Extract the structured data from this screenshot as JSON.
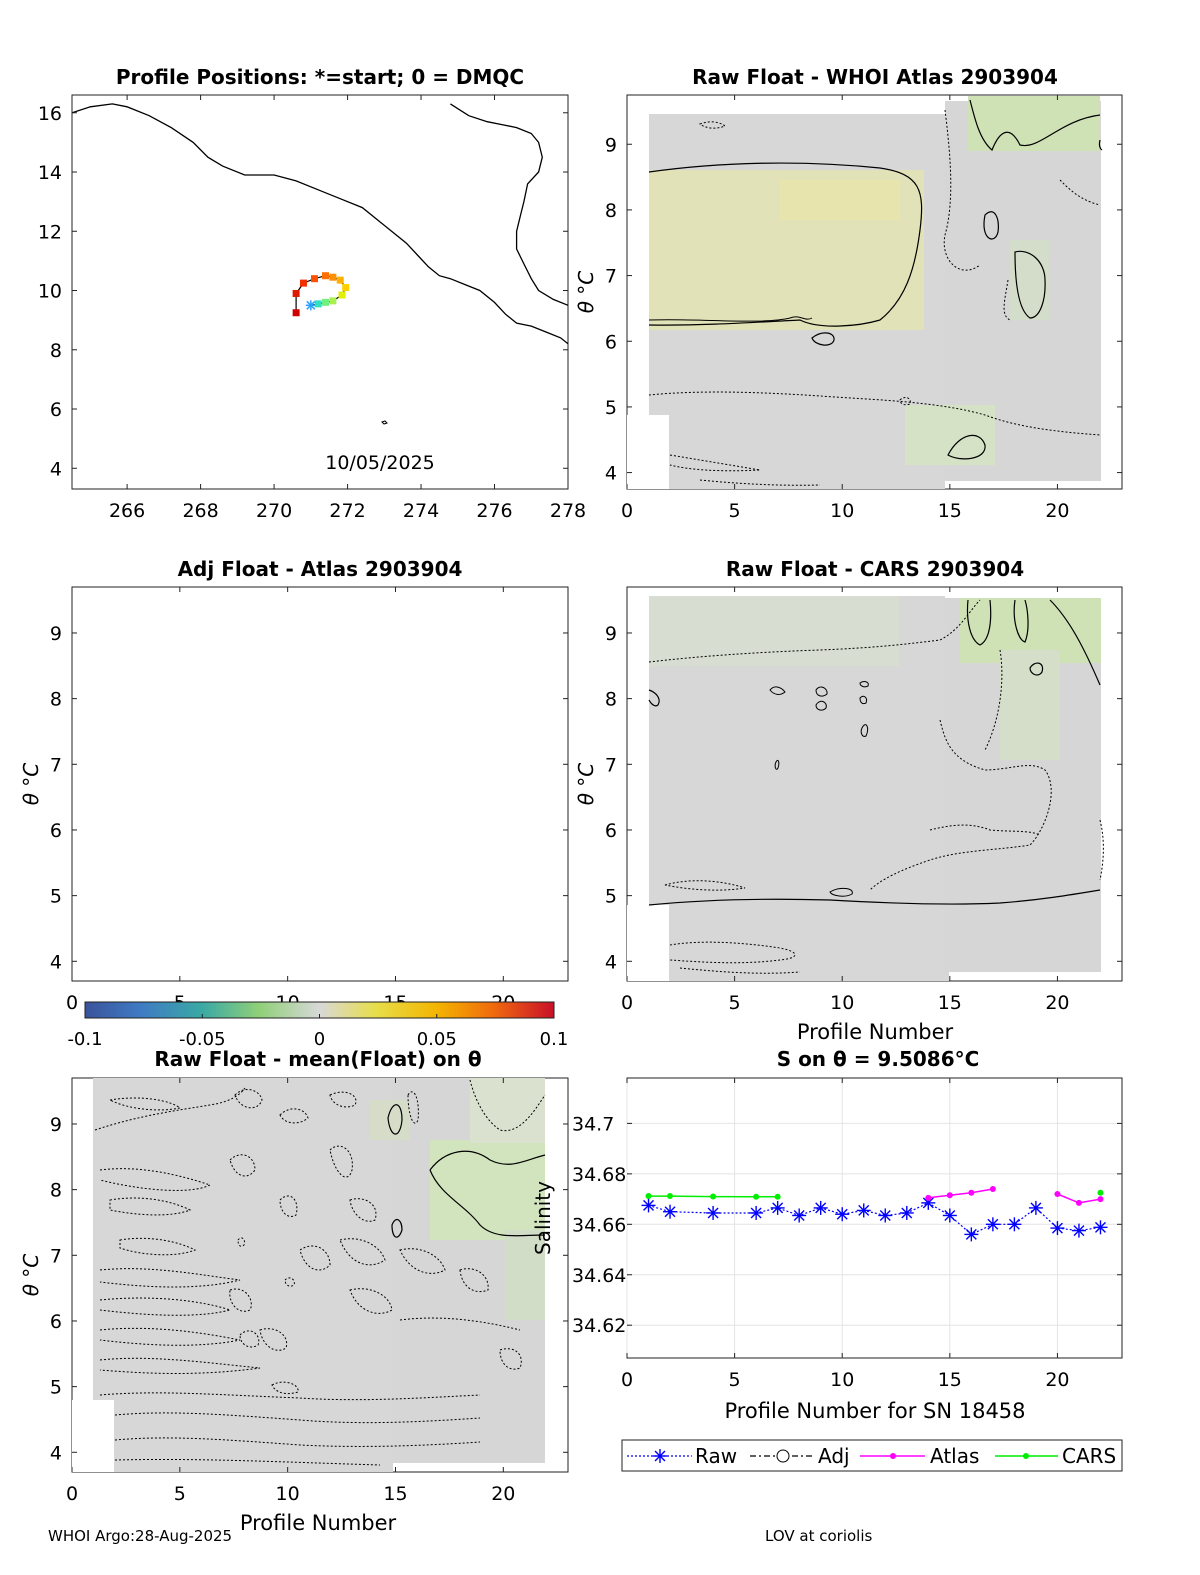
{
  "figure": {
    "footer_left": "WHOI Argo:28-Aug-2025",
    "footer_right": "LOV at coriolis"
  },
  "chart_data": [
    {
      "id": "map",
      "type": "scatter",
      "title": "Profile Positions: *=start; 0 = DMQC",
      "xlim": [
        264.5,
        278
      ],
      "ylim": [
        3.3,
        16.6
      ],
      "xticks": [
        266,
        268,
        270,
        272,
        274,
        276,
        278
      ],
      "yticks": [
        4,
        6,
        8,
        10,
        12,
        14,
        16
      ],
      "annotation": "10/05/2025",
      "coast_main": [
        [
          264.5,
          16.0
        ],
        [
          265.0,
          16.2
        ],
        [
          265.6,
          16.3
        ],
        [
          266.0,
          16.2
        ],
        [
          266.6,
          15.9
        ],
        [
          267.2,
          15.5
        ],
        [
          267.8,
          15.0
        ],
        [
          268.2,
          14.5
        ],
        [
          268.6,
          14.2
        ],
        [
          269.2,
          13.9
        ],
        [
          270.0,
          13.9
        ],
        [
          270.6,
          13.7
        ],
        [
          271.2,
          13.4
        ],
        [
          271.8,
          13.1
        ],
        [
          272.4,
          12.8
        ],
        [
          272.8,
          12.4
        ],
        [
          273.2,
          12.0
        ],
        [
          273.6,
          11.6
        ],
        [
          273.9,
          11.2
        ],
        [
          274.2,
          10.8
        ],
        [
          274.5,
          10.5
        ],
        [
          274.8,
          10.4
        ],
        [
          275.2,
          10.2
        ],
        [
          275.6,
          10.0
        ],
        [
          276.0,
          9.6
        ],
        [
          276.3,
          9.2
        ],
        [
          276.6,
          8.9
        ],
        [
          277.0,
          8.8
        ],
        [
          277.4,
          8.6
        ],
        [
          277.8,
          8.4
        ],
        [
          278.0,
          8.2
        ]
      ],
      "coast_east": [
        [
          274.8,
          16.3
        ],
        [
          275.3,
          15.9
        ],
        [
          275.8,
          15.7
        ],
        [
          276.2,
          15.6
        ],
        [
          276.6,
          15.5
        ],
        [
          277.0,
          15.3
        ],
        [
          277.2,
          15.0
        ],
        [
          277.3,
          14.5
        ],
        [
          277.2,
          14.0
        ],
        [
          276.9,
          13.6
        ],
        [
          276.8,
          13.0
        ],
        [
          276.7,
          12.5
        ],
        [
          276.6,
          12.0
        ],
        [
          276.6,
          11.4
        ],
        [
          276.8,
          10.9
        ],
        [
          277.0,
          10.4
        ],
        [
          277.2,
          10.0
        ],
        [
          277.6,
          9.7
        ],
        [
          278.0,
          9.5
        ]
      ],
      "track": [
        {
          "lon": 271.0,
          "lat": 9.5
        },
        {
          "lon": 271.2,
          "lat": 9.55
        },
        {
          "lon": 271.4,
          "lat": 9.6
        },
        {
          "lon": 271.6,
          "lat": 9.65
        },
        {
          "lon": 271.85,
          "lat": 9.85
        },
        {
          "lon": 271.95,
          "lat": 10.1
        },
        {
          "lon": 271.8,
          "lat": 10.35
        },
        {
          "lon": 271.6,
          "lat": 10.45
        },
        {
          "lon": 271.4,
          "lat": 10.5
        },
        {
          "lon": 271.1,
          "lat": 10.4
        },
        {
          "lon": 270.8,
          "lat": 10.25
        },
        {
          "lon": 270.6,
          "lat": 9.9
        },
        {
          "lon": 270.6,
          "lat": 9.25
        }
      ]
    },
    {
      "id": "raw_atlas",
      "type": "heatmap",
      "title": "Raw Float - WHOI Atlas  2903904",
      "xlabel": "",
      "ylabel": "θ °C",
      "xlim": [
        0,
        23
      ],
      "ylim": [
        3.75,
        9.75
      ],
      "xticks": [
        0,
        5,
        10,
        15,
        20
      ],
      "yticks": [
        4,
        5,
        6,
        7,
        8,
        9
      ]
    },
    {
      "id": "adj_atlas",
      "type": "heatmap",
      "title": "Adj Float - Atlas  2903904",
      "xlabel": "",
      "ylabel": "θ °C",
      "xlim": [
        0,
        23
      ],
      "ylim": [
        3.7,
        9.7
      ],
      "xticks": [
        0,
        5,
        10,
        15,
        20
      ],
      "yticks": [
        4,
        5,
        6,
        7,
        8,
        9
      ]
    },
    {
      "id": "raw_cars",
      "type": "heatmap",
      "title": "Raw Float - CARS  2903904",
      "xlabel": "Profile Number",
      "ylabel": "θ °C",
      "xlim": [
        0,
        23
      ],
      "ylim": [
        3.7,
        9.7
      ],
      "xticks": [
        0,
        5,
        10,
        15,
        20
      ],
      "yticks": [
        4,
        5,
        6,
        7,
        8,
        9
      ]
    },
    {
      "id": "colorbar",
      "type": "heatmap",
      "range": [
        -0.1,
        0.1
      ],
      "tick_labels": [
        "-0.1",
        "-0.05",
        "0",
        "0.05",
        "0.1"
      ]
    },
    {
      "id": "raw_mean",
      "type": "heatmap",
      "title": "Raw Float - mean(Float) on θ",
      "xlabel": "Profile Number",
      "ylabel": "θ °C",
      "xlim": [
        0,
        23
      ],
      "ylim": [
        3.7,
        9.7
      ],
      "xticks": [
        0,
        5,
        10,
        15,
        20
      ],
      "yticks": [
        4,
        5,
        6,
        7,
        8,
        9
      ]
    },
    {
      "id": "salinity",
      "type": "line",
      "title": "S on θ = 9.5086°C",
      "xlabel": "Profile Number for SN 18458",
      "ylabel": "Salinity",
      "xlim": [
        0,
        23
      ],
      "ylim": [
        34.607,
        34.718
      ],
      "xticks": [
        0,
        5,
        10,
        15,
        20
      ],
      "yticks": [
        34.62,
        34.64,
        34.66,
        34.68,
        34.7
      ],
      "ytick_labels": [
        "34.62",
        "34.64",
        "34.66",
        "34.68",
        "34.7"
      ],
      "series": [
        {
          "name": "Raw",
          "color": "#0000ff",
          "style": "dotted",
          "marker": "asterisk",
          "x": [
            1,
            2,
            4,
            6,
            7,
            8,
            9,
            10,
            11,
            12,
            13,
            14,
            15,
            16,
            17,
            18,
            19,
            20,
            21,
            22
          ],
          "y": [
            34.6675,
            34.665,
            34.6645,
            34.6645,
            34.6665,
            34.6635,
            34.6665,
            34.664,
            34.6655,
            34.6635,
            34.6645,
            34.6685,
            34.6635,
            34.656,
            34.66,
            34.66,
            34.6665,
            34.6585,
            34.6575,
            34.6588
          ]
        },
        {
          "name": "Adj",
          "color": "#000000",
          "style": "dashdot",
          "marker": "circle",
          "x": [],
          "y": []
        },
        {
          "name": "Atlas",
          "color": "#ff00ff",
          "style": "solid",
          "marker": "dot",
          "segments": [
            {
              "x": [
                14,
                15,
                16,
                17
              ],
              "y": [
                34.6705,
                34.6715,
                34.6725,
                34.674
              ]
            },
            {
              "x": [
                20,
                21,
                22
              ],
              "y": [
                34.672,
                34.6685,
                34.67
              ]
            }
          ]
        },
        {
          "name": "CARS",
          "color": "#00ee00",
          "style": "solid",
          "marker": "dot",
          "segments": [
            {
              "x": [
                1,
                2,
                4,
                6,
                7
              ],
              "y": [
                34.6712,
                34.6712,
                34.671,
                34.6709,
                34.6709
              ]
            },
            {
              "x": [
                22
              ],
              "y": [
                34.6725
              ]
            }
          ]
        }
      ]
    }
  ]
}
